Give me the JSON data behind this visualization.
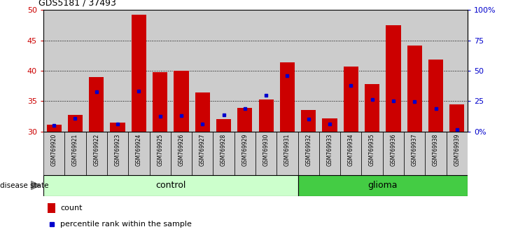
{
  "title": "GDS5181 / 37493",
  "samples": [
    "GSM769920",
    "GSM769921",
    "GSM769922",
    "GSM769923",
    "GSM769924",
    "GSM769925",
    "GSM769926",
    "GSM769927",
    "GSM769928",
    "GSM769929",
    "GSM769930",
    "GSM769931",
    "GSM769932",
    "GSM769933",
    "GSM769934",
    "GSM769935",
    "GSM769936",
    "GSM769937",
    "GSM769938",
    "GSM769939"
  ],
  "count_values": [
    31.1,
    32.7,
    39.0,
    31.5,
    49.2,
    39.7,
    40.0,
    36.4,
    32.0,
    33.9,
    35.3,
    41.4,
    33.5,
    32.2,
    40.7,
    37.8,
    47.5,
    44.1,
    41.8,
    34.5
  ],
  "percentile_values": [
    31.0,
    32.2,
    36.5,
    31.2,
    36.7,
    32.5,
    32.6,
    31.2,
    32.7,
    33.8,
    35.9,
    39.2,
    32.0,
    31.2,
    37.6,
    35.3,
    35.0,
    34.9,
    33.8,
    30.3
  ],
  "y_min": 30,
  "y_max": 50,
  "y_ticks": [
    30,
    35,
    40,
    45,
    50
  ],
  "control_count": 12,
  "control_label": "control",
  "glioma_label": "glioma",
  "bar_color": "#cc0000",
  "dot_color": "#0000cc",
  "control_bg": "#ccffcc",
  "glioma_bg": "#44cc44",
  "col_bg": "#cccccc",
  "right_axis_color": "#0000cc",
  "left_axis_color": "#cc0000",
  "right_ticks": [
    0,
    25,
    50,
    75,
    100
  ],
  "right_labels": [
    "0%",
    "25",
    "50",
    "75",
    "100%"
  ]
}
